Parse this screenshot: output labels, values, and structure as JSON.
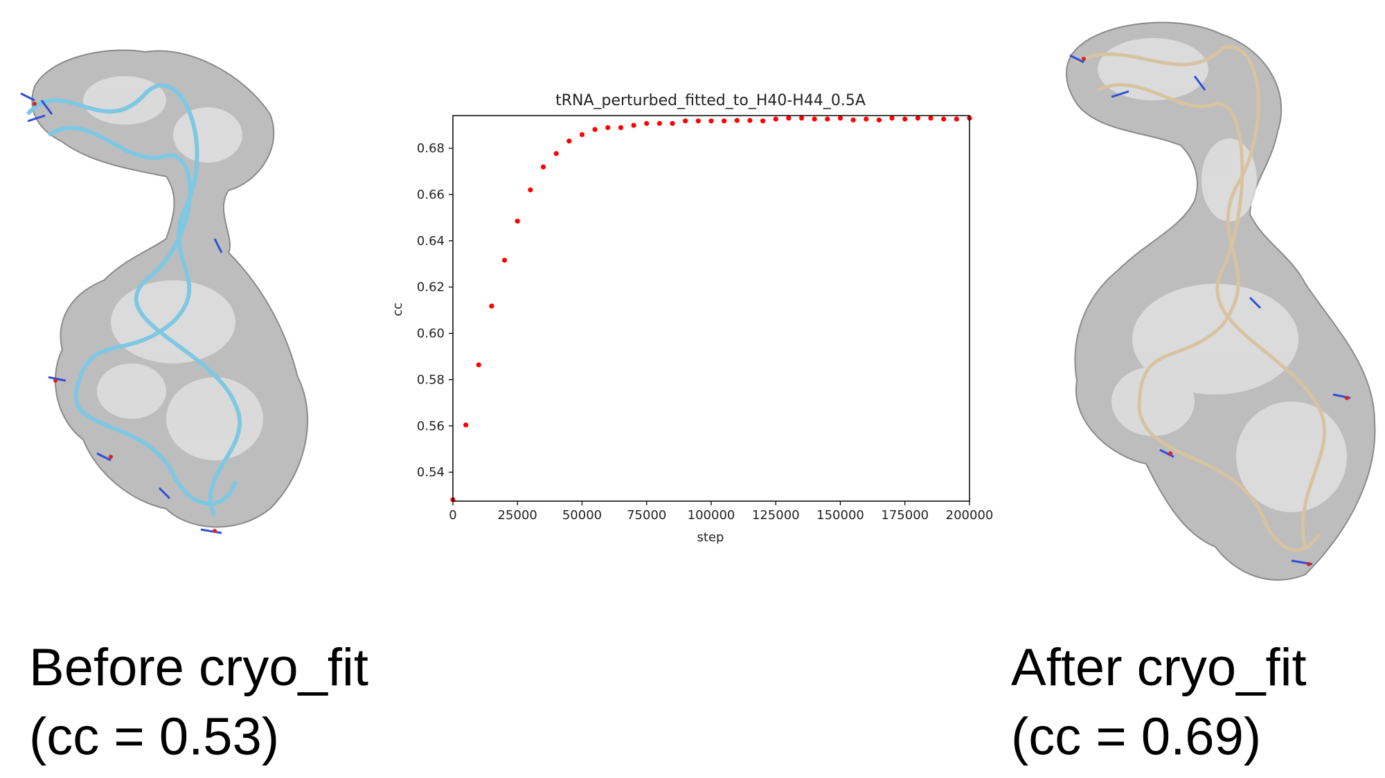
{
  "left_panel": {
    "caption_line1": "Before cryo_fit",
    "caption_line2": "(cc = 0.53)",
    "ribbon_color": "#7ec8e3"
  },
  "right_panel": {
    "caption_line1": "After cryo_fit",
    "caption_line2": "(cc = 0.69)",
    "ribbon_color": "#d8c3a0"
  },
  "chart_data": {
    "type": "scatter",
    "title": "tRNA_perturbed_fitted_to_H40-H44_0.5A",
    "xlabel": "step",
    "ylabel": "cc",
    "xlim": [
      0,
      200000
    ],
    "ylim": [
      0.5275,
      0.6941
    ],
    "xticks": [
      0,
      25000,
      50000,
      75000,
      100000,
      125000,
      150000,
      175000,
      200000
    ],
    "yticks": [
      0.54,
      0.56,
      0.58,
      0.6,
      0.62,
      0.64,
      0.66,
      0.68
    ],
    "ytick_labels": [
      "0.54",
      "0.56",
      "0.58",
      "0.60",
      "0.62",
      "0.64",
      "0.66",
      "0.68"
    ],
    "marker_color": "#ff0000",
    "grid": false,
    "x": [
      0,
      5000,
      10000,
      15000,
      20000,
      25000,
      30000,
      35000,
      40000,
      45000,
      50000,
      55000,
      60000,
      65000,
      70000,
      75000,
      80000,
      85000,
      90000,
      95000,
      100000,
      105000,
      110000,
      115000,
      120000,
      125000,
      130000,
      135000,
      140000,
      145000,
      150000,
      155000,
      160000,
      165000,
      170000,
      175000,
      180000,
      185000,
      190000,
      195000,
      200000
    ],
    "y": [
      0.5281,
      0.5604,
      0.5864,
      0.6118,
      0.6316,
      0.6485,
      0.662,
      0.6719,
      0.6777,
      0.6831,
      0.6859,
      0.6881,
      0.6889,
      0.6889,
      0.6899,
      0.6907,
      0.6907,
      0.6907,
      0.6918,
      0.6918,
      0.6918,
      0.6918,
      0.692,
      0.692,
      0.6918,
      0.6926,
      0.693,
      0.693,
      0.6926,
      0.6926,
      0.693,
      0.6922,
      0.6926,
      0.6922,
      0.693,
      0.6926,
      0.693,
      0.693,
      0.6926,
      0.6926,
      0.693
    ]
  }
}
